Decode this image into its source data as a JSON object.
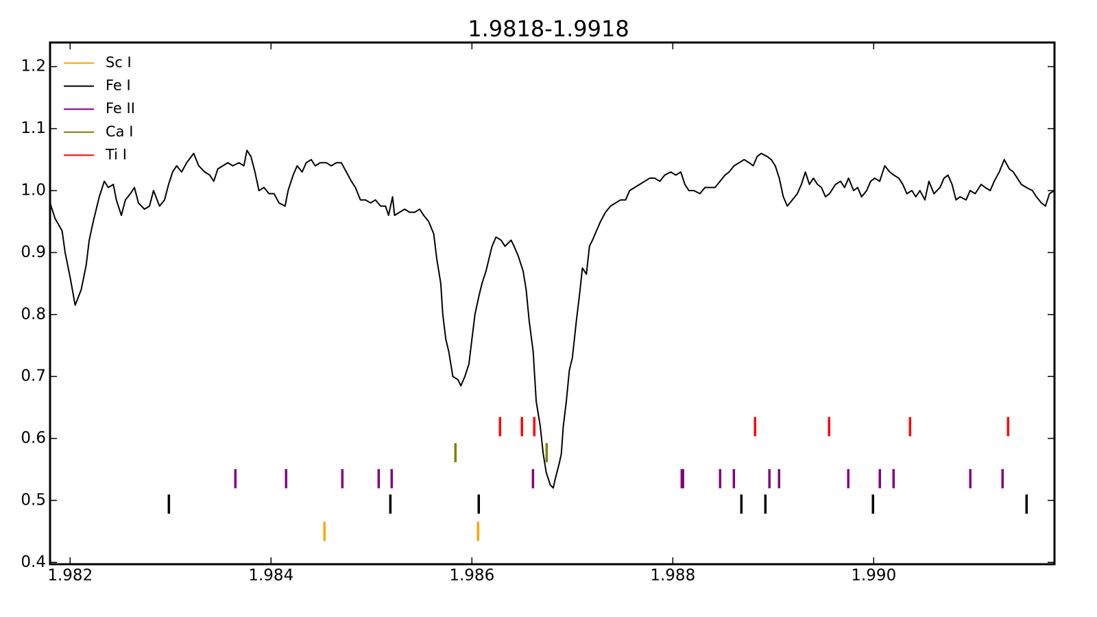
{
  "chart_data": {
    "type": "line",
    "title": "1.9818-1.9918",
    "color": "#000000",
    "x": [
      1.9818,
      1.98185,
      1.98192,
      1.98195,
      1.982,
      1.98205,
      1.98211,
      1.98216,
      1.98219,
      1.98223,
      1.98226,
      1.98229,
      1.98234,
      1.98238,
      1.98243,
      1.98246,
      1.98251,
      1.98255,
      1.9826,
      1.98264,
      1.98268,
      1.98274,
      1.98279,
      1.98283,
      1.98289,
      1.98294,
      1.98298,
      1.98302,
      1.98306,
      1.98311,
      1.98316,
      1.98323,
      1.98328,
      1.98334,
      1.98339,
      1.98343,
      1.98347,
      1.98352,
      1.98357,
      1.98362,
      1.98368,
      1.98373,
      1.98376,
      1.9838,
      1.98384,
      1.98388,
      1.98393,
      1.98398,
      1.98403,
      1.98408,
      1.98414,
      1.98417,
      1.98422,
      1.98426,
      1.98431,
      1.98435,
      1.9844,
      1.98444,
      1.98449,
      1.98455,
      1.9846,
      1.98465,
      1.9847,
      1.98475,
      1.9848,
      1.98484,
      1.98489,
      1.98494,
      1.98499,
      1.98504,
      1.98509,
      1.98514,
      1.98517,
      1.98521,
      1.98523,
      1.98528,
      1.98533,
      1.98538,
      1.98543,
      1.98548,
      1.98552,
      1.98557,
      1.98562,
      1.98565,
      1.98569,
      1.98571,
      1.98574,
      1.98577,
      1.98581,
      1.98586,
      1.98589,
      1.98593,
      1.98597,
      1.986,
      1.98603,
      1.98607,
      1.9861,
      1.98614,
      1.98617,
      1.9862,
      1.98624,
      1.98629,
      1.98633,
      1.98639,
      1.98642,
      1.98646,
      1.98651,
      1.98654,
      1.98657,
      1.98661,
      1.98664,
      1.98668,
      1.98671,
      1.98674,
      1.98678,
      1.98681,
      1.98683,
      1.98687,
      1.98689,
      1.98691,
      1.98694,
      1.98697,
      1.987,
      1.98704,
      1.98707,
      1.9871,
      1.98714,
      1.98717,
      1.9872,
      1.98724,
      1.98728,
      1.98733,
      1.98738,
      1.98743,
      1.98748,
      1.98753,
      1.98757,
      1.98762,
      1.98767,
      1.98772,
      1.98777,
      1.98782,
      1.98787,
      1.98792,
      1.98798,
      1.98803,
      1.98808,
      1.98812,
      1.98816,
      1.98821,
      1.98827,
      1.98832,
      1.98837,
      1.98842,
      1.98847,
      1.98852,
      1.98856,
      1.98861,
      1.98866,
      1.98871,
      1.98876,
      1.9888,
      1.98884,
      1.98888,
      1.98894,
      1.98898,
      1.98902,
      1.98906,
      1.9891,
      1.98914,
      1.98919,
      1.98924,
      1.98928,
      1.98932,
      1.98936,
      1.9894,
      1.98944,
      1.98948,
      1.98952,
      1.98956,
      1.98962,
      1.98967,
      1.98971,
      1.98975,
      1.9898,
      1.98984,
      1.98988,
      1.98993,
      1.98997,
      1.99001,
      1.99006,
      1.99011,
      1.99016,
      1.9902,
      1.99025,
      1.99029,
      1.99033,
      1.99038,
      1.99042,
      1.99046,
      1.99051,
      1.99055,
      1.9906,
      1.99066,
      1.9907,
      1.99074,
      1.99078,
      1.99082,
      1.99086,
      1.99092,
      1.99096,
      1.99101,
      1.99107,
      1.99111,
      1.99116,
      1.9912,
      1.99125,
      1.9913,
      1.99135,
      1.99139,
      1.99143,
      1.99147,
      1.99152,
      1.99158,
      1.99162,
      1.99167,
      1.99171,
      1.99175,
      1.9918
    ],
    "values": [
      0.98,
      0.955,
      0.935,
      0.9,
      0.86,
      0.815,
      0.84,
      0.88,
      0.92,
      0.95,
      0.97,
      0.99,
      1.015,
      1.005,
      1.01,
      0.985,
      0.96,
      0.985,
      0.995,
      1.005,
      0.98,
      0.97,
      0.975,
      1.0,
      0.975,
      0.985,
      1.01,
      1.03,
      1.04,
      1.03,
      1.045,
      1.06,
      1.04,
      1.03,
      1.025,
      1.015,
      1.035,
      1.04,
      1.045,
      1.04,
      1.045,
      1.04,
      1.065,
      1.055,
      1.03,
      1.0,
      1.005,
      0.995,
      0.995,
      0.98,
      0.975,
      1.0,
      1.025,
      1.04,
      1.03,
      1.045,
      1.05,
      1.04,
      1.045,
      1.045,
      1.04,
      1.045,
      1.045,
      1.03,
      1.015,
      1.005,
      0.985,
      0.985,
      0.98,
      0.985,
      0.975,
      0.975,
      0.96,
      0.99,
      0.96,
      0.965,
      0.97,
      0.965,
      0.965,
      0.97,
      0.96,
      0.95,
      0.93,
      0.89,
      0.85,
      0.8,
      0.76,
      0.74,
      0.7,
      0.695,
      0.685,
      0.7,
      0.72,
      0.76,
      0.8,
      0.83,
      0.85,
      0.87,
      0.89,
      0.91,
      0.925,
      0.92,
      0.91,
      0.92,
      0.91,
      0.895,
      0.87,
      0.84,
      0.79,
      0.74,
      0.66,
      0.62,
      0.575,
      0.545,
      0.525,
      0.52,
      0.535,
      0.56,
      0.575,
      0.62,
      0.66,
      0.71,
      0.73,
      0.79,
      0.83,
      0.875,
      0.865,
      0.91,
      0.92,
      0.935,
      0.95,
      0.965,
      0.975,
      0.98,
      0.985,
      0.985,
      1.0,
      1.005,
      1.01,
      1.015,
      1.02,
      1.02,
      1.015,
      1.025,
      1.03,
      1.025,
      1.03,
      1.01,
      1.0,
      1.0,
      0.995,
      1.005,
      1.005,
      1.005,
      1.015,
      1.025,
      1.03,
      1.04,
      1.045,
      1.05,
      1.045,
      1.04,
      1.055,
      1.06,
      1.055,
      1.05,
      1.04,
      1.02,
      0.99,
      0.975,
      0.985,
      0.995,
      1.01,
      1.03,
      1.01,
      1.02,
      1.01,
      1.005,
      0.99,
      0.995,
      1.01,
      1.015,
      1.005,
      1.02,
      1.0,
      1.005,
      0.99,
      1.0,
      1.015,
      1.02,
      1.015,
      1.04,
      1.03,
      1.025,
      1.02,
      1.01,
      0.995,
      1.0,
      0.99,
      1.0,
      0.985,
      1.015,
      0.995,
      1.005,
      1.02,
      1.025,
      1.01,
      0.985,
      0.99,
      0.985,
      1.0,
      0.995,
      1.01,
      1.005,
      1.0,
      1.015,
      1.03,
      1.05,
      1.035,
      1.03,
      1.02,
      1.01,
      1.005,
      1.0,
      0.99,
      0.98,
      0.975,
      0.995,
      1.0
    ],
    "series": [
      {
        "name": "Sc I",
        "color": "#ffa500",
        "y": 0.45,
        "x": [
          1.984532,
          1.986061
        ]
      },
      {
        "name": "Fe I",
        "color": "#000000",
        "y": 0.494,
        "x": [
          1.982983,
          1.985188,
          1.986068,
          1.988683,
          1.988922,
          1.989993,
          1.991522
        ]
      },
      {
        "name": "Fe II",
        "color": "#800080",
        "y": 0.535,
        "x": [
          1.983645,
          1.98415,
          1.98471,
          1.985072,
          1.985201,
          1.986608,
          1.988089,
          1.988102,
          1.988471,
          1.988608,
          1.988962,
          1.989058,
          1.989747,
          1.990061,
          1.990198,
          1.990962,
          1.991283
        ]
      },
      {
        "name": "Ca I",
        "color": "#808000",
        "y": 0.577,
        "x": [
          1.985836,
          1.986744
        ]
      },
      {
        "name": "Ti I",
        "color": "#ff0000",
        "y": 0.619,
        "x": [
          1.98628,
          1.986498,
          1.986621,
          1.988819,
          1.989556,
          1.990362,
          1.991338
        ]
      }
    ],
    "xlim": [
      1.9818,
      1.9918
    ],
    "ylim": [
      0.397,
      1.239
    ],
    "xticks": [
      1.982,
      1.984,
      1.986,
      1.988,
      {
        "value": 1.99,
        "label": "1.990"
      }
    ],
    "yticks": [
      0.4,
      0.5,
      0.6,
      0.7,
      0.8,
      0.9,
      {
        "value": 1.0,
        "label": "1.0"
      },
      1.1,
      1.2
    ],
    "legend": "upper left",
    "grid": false
  }
}
